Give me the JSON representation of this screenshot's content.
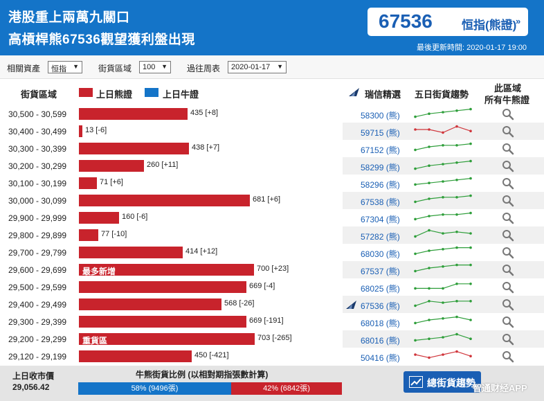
{
  "header": {
    "title_line1": "港股重上兩萬九關口",
    "title_line2": "高槓桿熊67536觀望獲利盤出現",
    "quote_value": "67536",
    "quote_label": "恒指(熊證)",
    "quote_arrow": "»",
    "updated": "最後更新時間: 2020-01-17 19:00"
  },
  "filters": {
    "asset_label": "相關資產",
    "asset_value": "恒指",
    "zone_label": "街貨區域",
    "zone_value": "100",
    "week_label": "過往周表",
    "week_value": "2020-01-17"
  },
  "columns": {
    "zone": "街貨區域",
    "bear_legend": "上日熊證",
    "bull_legend": "上日牛證",
    "pick": "瑞信精選",
    "trend": "五日街貨趨勢",
    "all_line1": "此區域",
    "all_line2": "所有牛熊證"
  },
  "colors": {
    "bear": "#c8232c",
    "bull": "#1474c8",
    "spark_up": "#2e9e3a",
    "spark_down": "#d0353b"
  },
  "rows": [
    {
      "range": "30,500 - 30,599",
      "value": 435,
      "label": "435 [+8]",
      "note": "",
      "ref": "58300 (熊)",
      "mark": false,
      "trend": "up",
      "spark": [
        2,
        4,
        5,
        6,
        7
      ]
    },
    {
      "range": "30,400 - 30,499",
      "value": 13,
      "label": "13 [-6]",
      "note": "",
      "ref": "59715 (熊)",
      "mark": false,
      "trend": "down",
      "spark": [
        5,
        5,
        3,
        7,
        4
      ]
    },
    {
      "range": "30,300 - 30,399",
      "value": 438,
      "label": "438 [+7]",
      "note": "",
      "ref": "67152 (熊)",
      "mark": false,
      "trend": "up",
      "spark": [
        3,
        5,
        6,
        6,
        7
      ]
    },
    {
      "range": "30,200 - 30,299",
      "value": 260,
      "label": "260 [+11]",
      "note": "",
      "ref": "58299 (熊)",
      "mark": false,
      "trend": "up",
      "spark": [
        2,
        4,
        5,
        6,
        7
      ]
    },
    {
      "range": "30,100 - 30,199",
      "value": 71,
      "label": "71 [+6]",
      "note": "",
      "ref": "58296 (熊)",
      "mark": false,
      "trend": "up",
      "spark": [
        3,
        4,
        5,
        6,
        7
      ]
    },
    {
      "range": "30,000 - 30,099",
      "value": 681,
      "label": "681 [+6]",
      "note": "",
      "ref": "67538 (熊)",
      "mark": false,
      "trend": "up",
      "spark": [
        3,
        5,
        6,
        6,
        7
      ]
    },
    {
      "range": "29,900 - 29,999",
      "value": 160,
      "label": "160 [-6]",
      "note": "",
      "ref": "67304 (熊)",
      "mark": false,
      "trend": "up",
      "spark": [
        3,
        5,
        6,
        6,
        7
      ]
    },
    {
      "range": "29,800 - 29,899",
      "value": 77,
      "label": "77 [-10]",
      "note": "",
      "ref": "57282 (熊)",
      "mark": false,
      "trend": "up",
      "spark": [
        3,
        7,
        5,
        6,
        5
      ]
    },
    {
      "range": "29,700 - 29,799",
      "value": 414,
      "label": "414 [+12]",
      "note": "",
      "ref": "68030 (熊)",
      "mark": false,
      "trend": "up",
      "spark": [
        3,
        5,
        6,
        7,
        7
      ]
    },
    {
      "range": "29,600 - 29,699",
      "value": 700,
      "label": "700 [+23]",
      "note": "最多新增",
      "ref": "67537 (熊)",
      "mark": false,
      "trend": "up",
      "spark": [
        3,
        5,
        6,
        7,
        7
      ]
    },
    {
      "range": "29,500 - 29,599",
      "value": 669,
      "label": "669 [-4]",
      "note": "",
      "ref": "68025 (熊)",
      "mark": false,
      "trend": "up",
      "spark": [
        3,
        3,
        3,
        6,
        6
      ]
    },
    {
      "range": "29,400 - 29,499",
      "value": 568,
      "label": "568 [-26]",
      "note": "",
      "ref": "67536 (熊)",
      "mark": true,
      "trend": "up",
      "spark": [
        3,
        6,
        5,
        6,
        6
      ]
    },
    {
      "range": "29,300 - 29,399",
      "value": 669,
      "label": "669 [-191]",
      "note": "",
      "ref": "68018 (熊)",
      "mark": false,
      "trend": "up",
      "spark": [
        3,
        5,
        6,
        7,
        5
      ]
    },
    {
      "range": "29,200 - 29,299",
      "value": 703,
      "label": "703 [-265]",
      "note": "重貨區",
      "ref": "68016 (熊)",
      "mark": false,
      "trend": "up",
      "spark": [
        3,
        4,
        5,
        7,
        4
      ]
    },
    {
      "range": "29,120 - 29,199",
      "value": 450,
      "label": "450 [-421]",
      "note": "",
      "ref": "50416 (熊)",
      "mark": false,
      "trend": "down",
      "spark": [
        5,
        3,
        5,
        7,
        4
      ]
    }
  ],
  "footer": {
    "close_label": "上日收市價",
    "close_value": "29,056.42",
    "ratio_title": "牛熊街貨比例 (以相對期指張數計算)",
    "bull_pct": 58,
    "bull_label": "58% (9496張)",
    "bear_pct": 42,
    "bear_label": "42% (6842張)",
    "trend_button": "總街貨趨勢",
    "watermark": "智通财经APP"
  }
}
